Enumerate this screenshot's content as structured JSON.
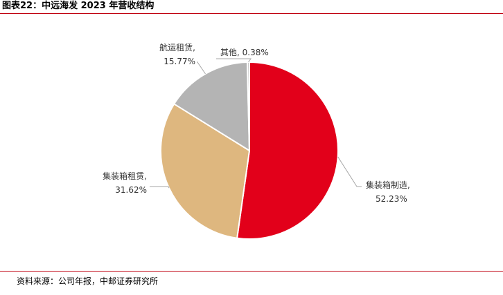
{
  "header": {
    "title": "图表22：中远海发 2023 年营收结构"
  },
  "footer": {
    "source": "资料来源：公司年报，中邮证券研究所"
  },
  "colors": {
    "rule": "#c0000f"
  },
  "chart_data": {
    "type": "pie",
    "title": "",
    "start_angle_deg": 0,
    "direction": "clockwise",
    "slices": [
      {
        "name": "集装箱制造",
        "value": 52.23,
        "label_value": "52.23%",
        "color": "#e2001a"
      },
      {
        "name": "集装箱租赁",
        "value": 31.62,
        "label_value": "31.62%",
        "color": "#deb77f"
      },
      {
        "name": "航运租赁",
        "value": 15.77,
        "label_value": "15.77%",
        "color": "#b4b4b4"
      },
      {
        "name": "其他",
        "value": 0.38,
        "label_value": "0.38%",
        "color": "#c8c8c8"
      }
    ],
    "legend": "none"
  }
}
